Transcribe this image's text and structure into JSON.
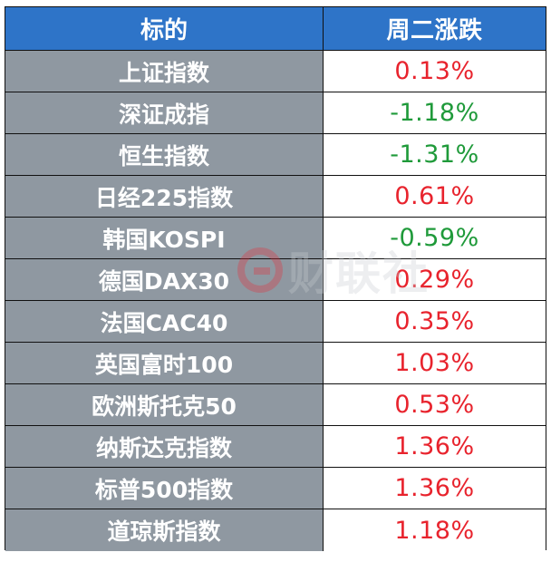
{
  "header": {
    "name_label": "标的",
    "value_label": "周二涨跌"
  },
  "rows": [
    {
      "name": "上证指数",
      "value": "0.13%",
      "direction": "up"
    },
    {
      "name": "深证成指",
      "value": "-1.18%",
      "direction": "down"
    },
    {
      "name": "恒生指数",
      "value": "-1.31%",
      "direction": "down"
    },
    {
      "name": "日经225指数",
      "value": "0.61%",
      "direction": "up"
    },
    {
      "name": "韩国KOSPI",
      "value": "-0.59%",
      "direction": "down"
    },
    {
      "name": "德国DAX30",
      "value": "0.29%",
      "direction": "up"
    },
    {
      "name": "法国CAC40",
      "value": "0.35%",
      "direction": "up"
    },
    {
      "name": "英国富时100",
      "value": "1.03%",
      "direction": "up"
    },
    {
      "name": "欧洲斯托克50",
      "value": "0.53%",
      "direction": "up"
    },
    {
      "name": "纳斯达克指数",
      "value": "1.36%",
      "direction": "up"
    },
    {
      "name": "标普500指数",
      "value": "1.36%",
      "direction": "up"
    },
    {
      "name": "道琼斯指数",
      "value": "1.18%",
      "direction": "up"
    }
  ],
  "colors": {
    "header_bg": "#2e74c8",
    "name_bg": "#8f98a1",
    "up": "#e8232d",
    "down": "#1f9a3a"
  },
  "watermark": {
    "text": "财联社",
    "icon": "cailianshe-logo-icon"
  }
}
